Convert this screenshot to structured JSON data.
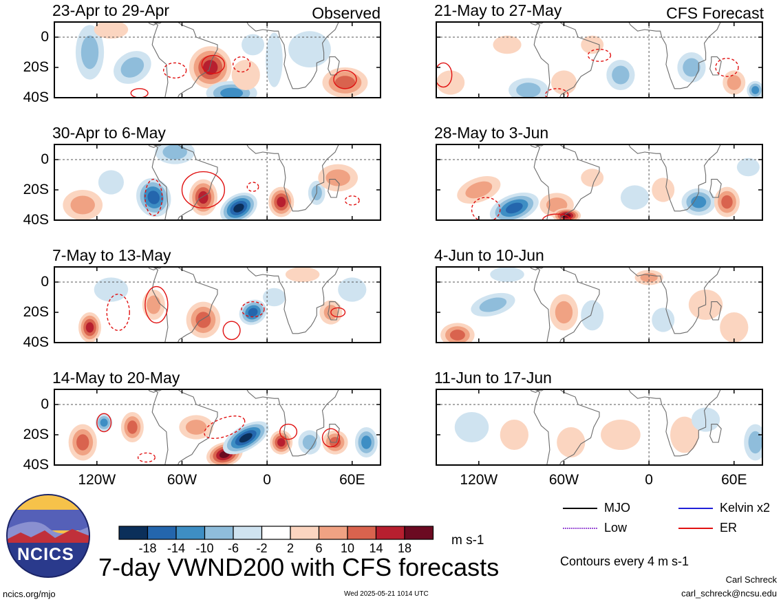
{
  "title": "7-day VWND200 with CFS forecasts",
  "units_label": "m s-1",
  "contour_note": "Contours every 4 m s-1",
  "timestamp": "Wed 2025-05-21 1014 UTC",
  "site": "ncics.org/mjo",
  "author": "Carl Schreck",
  "email": "carl_schreck@ncsu.edu",
  "logo_text": "NCICS",
  "tags": {
    "observed": "Observed",
    "forecast": "CFS Forecast"
  },
  "colorbar": {
    "colors": [
      "#0b2f5a",
      "#2466ad",
      "#3e8ec4",
      "#8fbddb",
      "#cfe3f0",
      "#ffffff",
      "#fbd5c0",
      "#f0a283",
      "#d9634e",
      "#b71f2f",
      "#6b0a21"
    ],
    "labels": [
      "-18",
      "-14",
      "-10",
      "-6",
      "-2",
      "2",
      "6",
      "10",
      "14",
      "18"
    ]
  },
  "legend": [
    {
      "name": "MJO",
      "color": "#000000"
    },
    {
      "name": "Kelvin x2",
      "color": "#1f1fd8"
    },
    {
      "name": "Low",
      "color": "#9a4fd6"
    },
    {
      "name": "ER",
      "color": "#e01010"
    }
  ],
  "colors": {
    "ocean": "#ffffff",
    "land_outline": "#6a6a6a",
    "frame": "#000000",
    "er_contour": "#e01010",
    "ref_line": "#555555"
  },
  "chart_data": {
    "type": "heatmap",
    "variable": "VWND200",
    "xticks": [
      "120W",
      "60W",
      "0",
      "60E"
    ],
    "yticks": [
      "0",
      "20S",
      "40S"
    ],
    "xlim": [
      -150,
      80
    ],
    "ylim": [
      -40,
      10
    ],
    "panels": [
      {
        "period": "23-Apr to 29-Apr",
        "source": "Observed"
      },
      {
        "period": "30-Apr to 6-May",
        "source": "Observed"
      },
      {
        "period": "7-May to 13-May",
        "source": "Observed"
      },
      {
        "period": "14-May to 20-May",
        "source": "Observed"
      },
      {
        "period": "21-May to 27-May",
        "source": "CFS Forecast"
      },
      {
        "period": "28-May to 3-Jun",
        "source": "CFS Forecast"
      },
      {
        "period": "4-Jun to 10-Jun",
        "source": "CFS Forecast"
      },
      {
        "period": "11-Jun to 17-Jun",
        "source": "CFS Forecast"
      }
    ]
  }
}
